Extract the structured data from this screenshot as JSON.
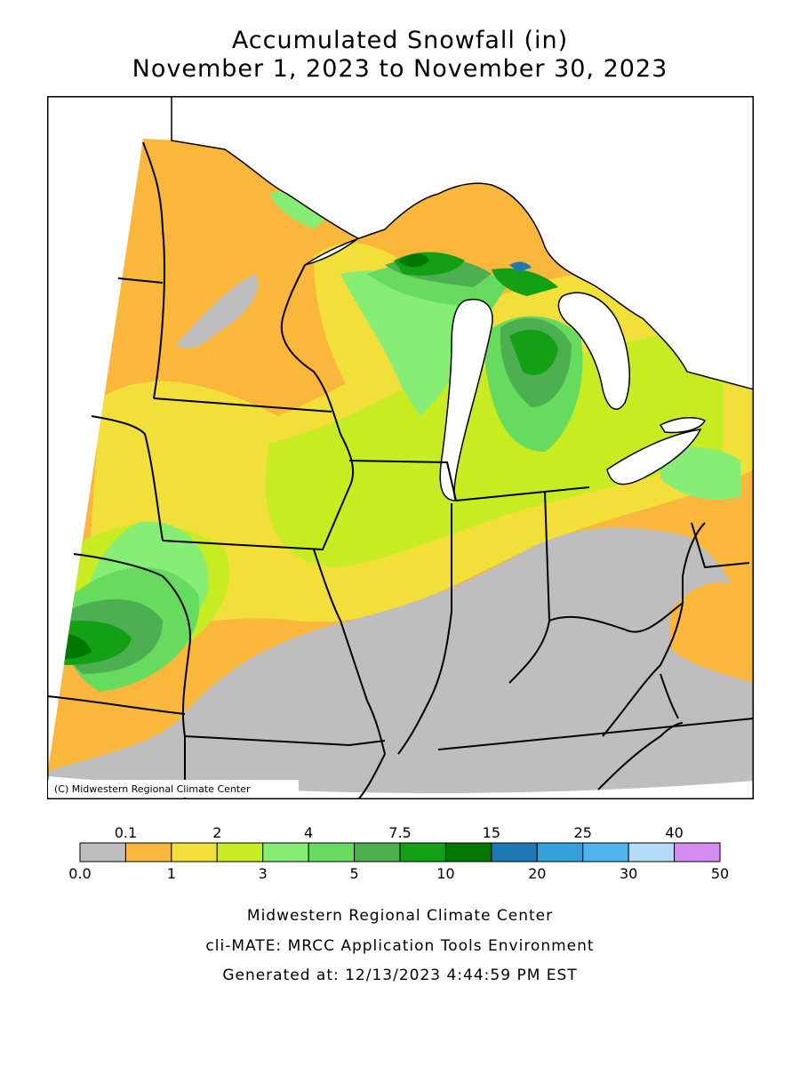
{
  "title_line1": "Accumulated Snowfall (in)",
  "title_line2": "November 1, 2023 to November 30, 2023",
  "copyright": "(C) Midwestern Regional Climate Center",
  "legend": {
    "top_labels": [
      "0.1",
      "2",
      "4",
      "7.5",
      "15",
      "25",
      "40"
    ],
    "bottom_labels": [
      "0.0",
      "1",
      "3",
      "5",
      "10",
      "20",
      "30",
      "50"
    ],
    "colors": [
      "#bebebe",
      "#fbb63c",
      "#f2df3a",
      "#c8ec22",
      "#86ee74",
      "#66db5e",
      "#4caf50",
      "#14a014",
      "#007800",
      "#1e78b4",
      "#32a0dc",
      "#50b4f0",
      "#b4dcf8",
      "#d28cf0"
    ]
  },
  "footer": {
    "line1": "Midwestern Regional Climate Center",
    "line2": "cli-MATE: MRCC Application Tools Environment",
    "line3": "Generated at: 12/13/2023 4:44:59 PM EST"
  }
}
